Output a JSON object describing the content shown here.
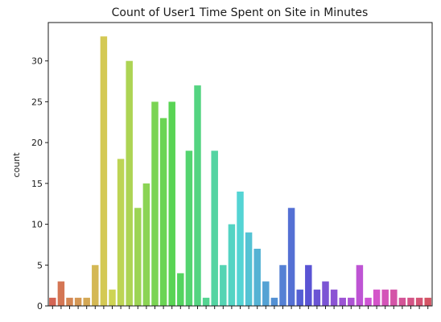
{
  "chart_data": {
    "type": "bar",
    "title": "Count of User1 Time Spent on Site in Minutes",
    "xlabel": "",
    "ylabel": "count",
    "ylim": [
      0,
      34.7
    ],
    "yticks": [
      0,
      5,
      10,
      15,
      20,
      25,
      30
    ],
    "grid": false,
    "x_tick_labels_visible": false,
    "palette": "husl rainbow gradient",
    "values": [
      1,
      3,
      1,
      1,
      1,
      5,
      33,
      2,
      18,
      30,
      12,
      15,
      25,
      23,
      25,
      4,
      19,
      27,
      1,
      19,
      5,
      10,
      14,
      9,
      7,
      3,
      1,
      5,
      12,
      2,
      5,
      2,
      3,
      2,
      1,
      1,
      5,
      1,
      2,
      2,
      2,
      1,
      1,
      1,
      1
    ]
  }
}
